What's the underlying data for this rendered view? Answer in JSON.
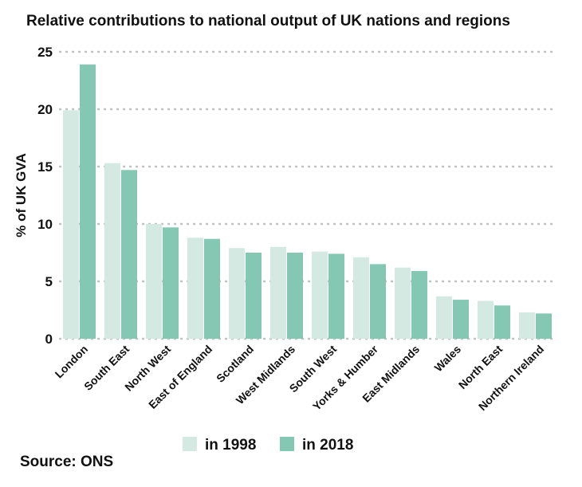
{
  "chart_data": {
    "type": "bar",
    "title": "Relative contributions to national output of UK nations and regions",
    "xlabel": "",
    "ylabel": "% of UK GVA",
    "ylim": [
      0,
      25
    ],
    "yticks": [
      0,
      5,
      10,
      15,
      20,
      25
    ],
    "grid": true,
    "legend_position": "bottom-center",
    "categories": [
      "London",
      "South East",
      "North West",
      "East of England",
      "Scotland",
      "West Midlands",
      "South West",
      "Yorks & Humber",
      "East Midlands",
      "Wales",
      "North East",
      "Northern Ireland"
    ],
    "series": [
      {
        "name": "in 1998",
        "color": "#d3e9e1",
        "values": [
          19.9,
          15.3,
          10.0,
          8.8,
          7.9,
          8.0,
          7.6,
          7.1,
          6.2,
          3.7,
          3.3,
          2.3
        ]
      },
      {
        "name": "in 2018",
        "color": "#84c8b4",
        "values": [
          23.9,
          14.7,
          9.7,
          8.7,
          7.5,
          7.5,
          7.4,
          6.5,
          5.9,
          3.4,
          2.9,
          2.2
        ]
      }
    ],
    "source": "Source: ONS"
  }
}
